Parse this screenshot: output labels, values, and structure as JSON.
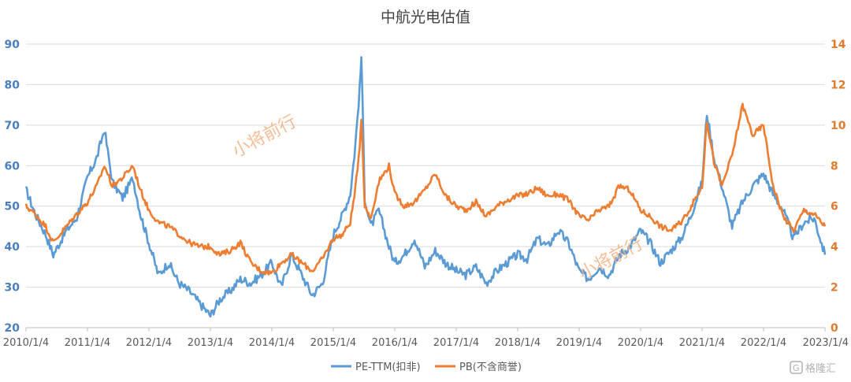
{
  "chart_data": {
    "type": "line",
    "title": "中航光电估值",
    "x_ticks": [
      "2010/1/4",
      "2011/1/4",
      "2012/1/4",
      "2013/1/4",
      "2014/1/4",
      "2015/1/4",
      "2016/1/4",
      "2017/1/4",
      "2018/1/4",
      "2019/1/4",
      "2020/1/4",
      "2021/1/4",
      "2022/1/4",
      "2023/1/4"
    ],
    "x_range": [
      "2010-01-04",
      "2023-01-04"
    ],
    "y_left": {
      "min": 20,
      "max": 90,
      "ticks": [
        20,
        30,
        40,
        50,
        60,
        70,
        80,
        90
      ]
    },
    "y_right": {
      "min": 0,
      "max": 14,
      "ticks": [
        0,
        2,
        4,
        6,
        8,
        10,
        12,
        14
      ]
    },
    "grid": true,
    "legend_position": "bottom",
    "series": [
      {
        "name": "PE-TTM(扣非)",
        "axis": "left",
        "color": "#5b9bd5",
        "x": [
          "2010-01-04",
          "2010-03-01",
          "2010-05-01",
          "2010-06-15",
          "2010-09-01",
          "2010-11-01",
          "2011-01-04",
          "2011-03-01",
          "2011-04-15",
          "2011-06-01",
          "2011-08-01",
          "2011-10-01",
          "2011-11-15",
          "2012-01-04",
          "2012-03-01",
          "2012-05-01",
          "2012-07-01",
          "2012-09-01",
          "2012-11-01",
          "2013-01-04",
          "2013-03-01",
          "2013-05-01",
          "2013-07-01",
          "2013-09-01",
          "2013-11-01",
          "2014-01-04",
          "2014-03-01",
          "2014-05-01",
          "2014-07-01",
          "2014-09-01",
          "2014-11-01",
          "2015-01-04",
          "2015-03-01",
          "2015-04-15",
          "2015-05-15",
          "2015-06-10",
          "2015-06-20",
          "2015-07-10",
          "2015-08-15",
          "2015-10-01",
          "2015-12-01",
          "2016-01-04",
          "2016-03-01",
          "2016-05-01",
          "2016-07-01",
          "2016-09-01",
          "2016-11-01",
          "2017-01-04",
          "2017-03-01",
          "2017-05-01",
          "2017-07-01",
          "2017-09-01",
          "2017-11-01",
          "2018-01-04",
          "2018-03-01",
          "2018-05-01",
          "2018-07-01",
          "2018-09-01",
          "2018-11-01",
          "2019-01-04",
          "2019-03-01",
          "2019-05-01",
          "2019-07-01",
          "2019-09-01",
          "2019-11-01",
          "2020-01-04",
          "2020-03-01",
          "2020-05-01",
          "2020-07-01",
          "2020-09-01",
          "2020-11-01",
          "2021-01-04",
          "2021-02-01",
          "2021-03-15",
          "2021-05-01",
          "2021-07-01",
          "2021-09-01",
          "2021-11-01",
          "2022-01-04",
          "2022-03-01",
          "2022-05-01",
          "2022-07-01",
          "2022-09-01",
          "2022-11-01",
          "2023-01-04"
        ],
        "values": [
          54,
          48,
          43,
          38,
          44,
          47,
          57,
          62,
          69,
          56,
          52,
          57,
          48,
          41,
          33,
          36,
          31,
          29,
          26,
          23,
          27,
          29,
          32,
          31,
          33,
          36,
          30,
          38,
          33,
          28,
          31,
          43,
          48,
          53,
          65,
          79,
          87,
          52,
          45,
          49,
          40,
          36,
          38,
          42,
          35,
          39,
          36,
          34,
          33,
          35,
          31,
          34,
          36,
          38,
          37,
          42,
          40,
          44,
          41,
          34,
          32,
          35,
          33,
          38,
          40,
          44,
          41,
          36,
          39,
          42,
          48,
          56,
          73,
          62,
          55,
          45,
          51,
          55,
          58,
          53,
          49,
          42,
          46,
          47,
          38
        ]
      },
      {
        "name": "PB(不含商誉)",
        "axis": "right",
        "color": "#ed7d31",
        "x": [
          "2010-01-04",
          "2010-03-01",
          "2010-05-01",
          "2010-06-15",
          "2010-09-01",
          "2010-11-01",
          "2011-01-04",
          "2011-03-01",
          "2011-04-15",
          "2011-06-01",
          "2011-08-01",
          "2011-10-01",
          "2011-11-15",
          "2012-01-04",
          "2012-03-01",
          "2012-05-01",
          "2012-07-01",
          "2012-09-01",
          "2012-11-01",
          "2013-01-04",
          "2013-03-01",
          "2013-05-01",
          "2013-07-01",
          "2013-09-01",
          "2013-11-01",
          "2014-01-04",
          "2014-03-01",
          "2014-05-01",
          "2014-07-01",
          "2014-09-01",
          "2014-11-01",
          "2015-01-04",
          "2015-03-01",
          "2015-04-15",
          "2015-05-15",
          "2015-06-10",
          "2015-06-20",
          "2015-07-10",
          "2015-08-15",
          "2015-10-01",
          "2015-12-01",
          "2016-01-04",
          "2016-03-01",
          "2016-05-01",
          "2016-07-01",
          "2016-09-01",
          "2016-11-01",
          "2017-01-04",
          "2017-03-01",
          "2017-05-01",
          "2017-07-01",
          "2017-09-01",
          "2017-11-01",
          "2018-01-04",
          "2018-03-01",
          "2018-05-01",
          "2018-07-01",
          "2018-09-01",
          "2018-11-01",
          "2019-01-04",
          "2019-03-01",
          "2019-05-01",
          "2019-07-01",
          "2019-09-01",
          "2019-11-01",
          "2020-01-04",
          "2020-03-01",
          "2020-05-01",
          "2020-07-01",
          "2020-09-01",
          "2020-11-01",
          "2021-01-04",
          "2021-02-01",
          "2021-03-15",
          "2021-05-01",
          "2021-07-01",
          "2021-09-01",
          "2021-11-01",
          "2022-01-04",
          "2022-03-01",
          "2022-05-01",
          "2022-07-01",
          "2022-09-01",
          "2022-11-01",
          "2023-01-04"
        ],
        "values": [
          6.0,
          5.6,
          5.0,
          4.2,
          5.0,
          5.6,
          6.2,
          7.0,
          8.0,
          7.0,
          7.4,
          8.0,
          6.8,
          5.8,
          5.2,
          5.0,
          4.6,
          4.2,
          4.0,
          4.0,
          3.6,
          3.8,
          4.2,
          3.2,
          2.8,
          2.7,
          3.2,
          3.6,
          3.2,
          2.8,
          3.4,
          4.4,
          4.6,
          5.2,
          6.8,
          9.0,
          10.4,
          6.0,
          5.4,
          7.2,
          8.0,
          6.6,
          6.0,
          6.2,
          6.8,
          7.6,
          6.5,
          6.0,
          5.8,
          6.2,
          5.5,
          6.0,
          6.3,
          6.5,
          6.6,
          6.9,
          6.5,
          6.6,
          6.3,
          5.5,
          5.3,
          5.8,
          6.0,
          7.0,
          6.8,
          5.8,
          5.5,
          5.0,
          4.8,
          5.2,
          6.0,
          7.0,
          10.2,
          8.2,
          7.0,
          8.5,
          11.0,
          9.5,
          10.0,
          7.0,
          5.5,
          4.8,
          5.8,
          5.6,
          5.0
        ]
      }
    ]
  },
  "legend": {
    "pe_label": "PE-TTM(扣非)",
    "pb_label": "PB(不含商誉)"
  },
  "watermark": {
    "text": "小将前行"
  },
  "brand": {
    "text": "格隆汇"
  },
  "colors": {
    "pe": "#5b9bd5",
    "pb": "#ed7d31",
    "grid": "#d9d9d9"
  }
}
